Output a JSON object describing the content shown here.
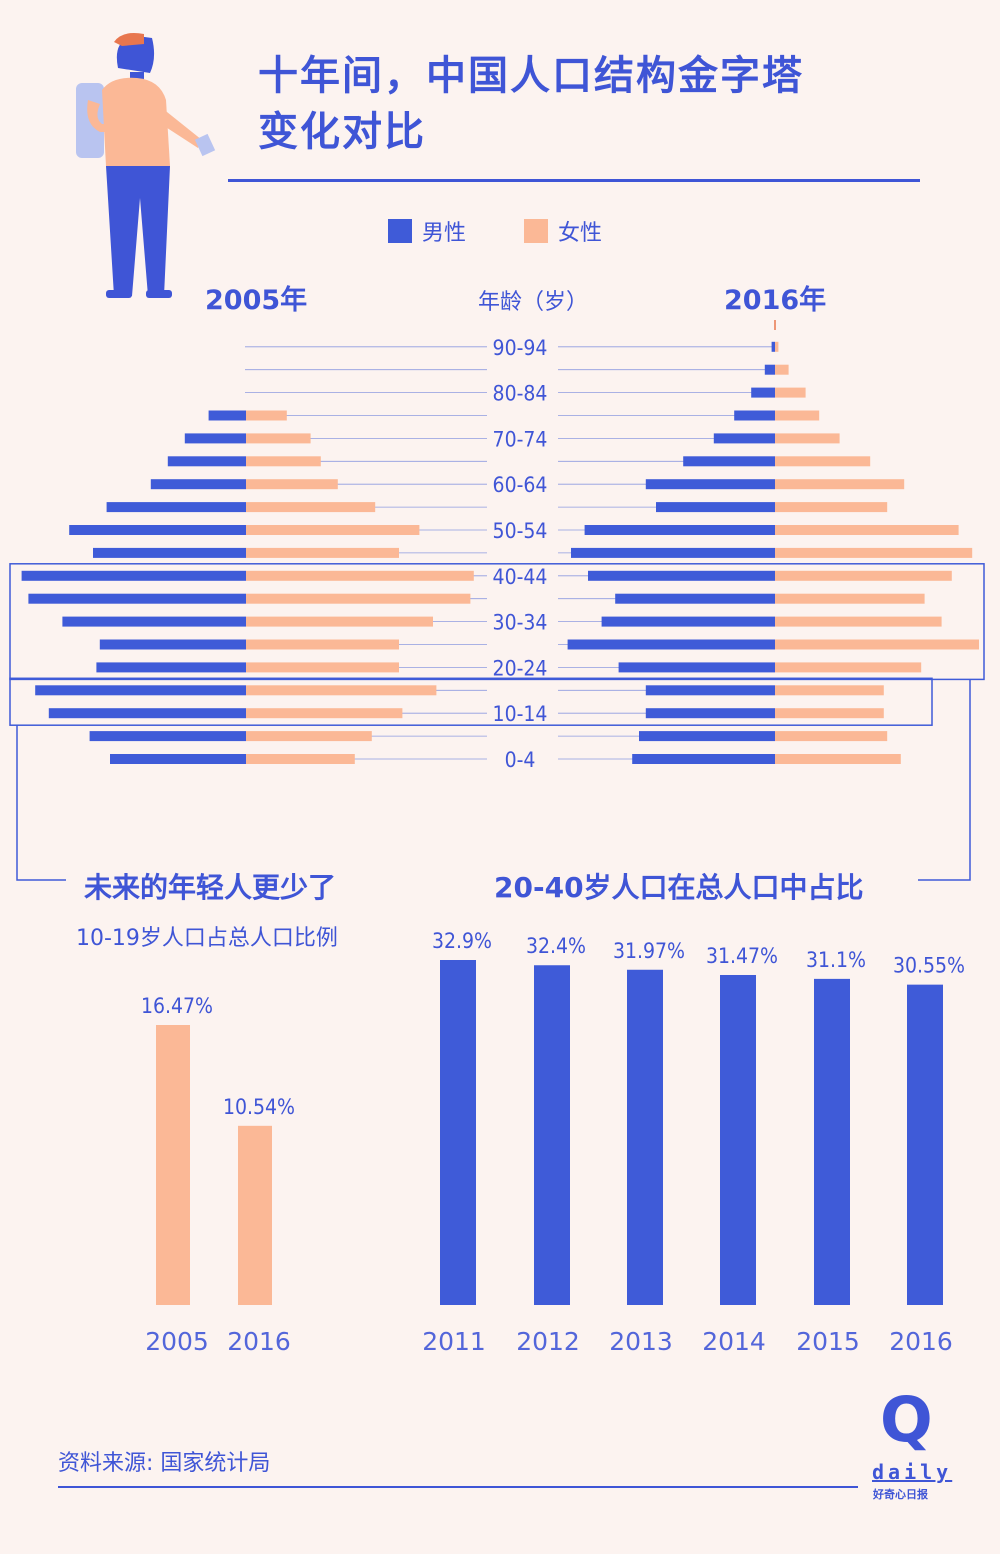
{
  "title": "十年间，中国人口结构金字塔变化对比",
  "title_lines": [
    "十年间，中国人口结构金字塔",
    "变化对比"
  ],
  "legend": {
    "male": "男性",
    "female": "女性"
  },
  "colors": {
    "male": "#3F5BD8",
    "female": "#FBB896",
    "text": "#3F55D6",
    "background": "#FCF3F0"
  },
  "pyramid": {
    "year_left": "2005年",
    "year_right": "2016年",
    "age_title": "年龄（岁）"
  },
  "section_left": {
    "title": "未来的年轻人更少了",
    "subtitle": "10-19岁人口占总人口比例"
  },
  "section_right": {
    "title": "20-40岁人口在总人口中占比"
  },
  "source": "资料来源: 国家统计局",
  "logo": {
    "mark": "Q",
    "name": "daily",
    "tagline": "好奇心日报"
  },
  "chart_data": [
    {
      "type": "bar",
      "subtype": "population-pyramid",
      "title": "2005年",
      "categories": [
        "0-4",
        "5-9",
        "10-14",
        "15-19",
        "20-24",
        "25-29",
        "30-34",
        "35-39",
        "40-44",
        "45-49",
        "50-54",
        "55-59",
        "60-64",
        "65-69",
        "70-74",
        "75-79"
      ],
      "tick_labels_shown": [
        "0-4",
        "10-14",
        "20-24",
        "30-34",
        "40-44",
        "50-54",
        "60-64",
        "70-74",
        "80-84",
        "90-94"
      ],
      "series": [
        {
          "name": "男性",
          "values": [
            4.0,
            4.6,
            5.8,
            6.2,
            4.4,
            4.3,
            5.4,
            6.4,
            6.6,
            4.5,
            5.2,
            4.1,
            2.8,
            2.3,
            1.8,
            1.1
          ]
        },
        {
          "name": "女性",
          "values": [
            3.2,
            3.7,
            4.6,
            5.6,
            4.5,
            4.5,
            5.5,
            6.6,
            6.7,
            4.5,
            5.1,
            3.8,
            2.7,
            2.2,
            1.9,
            1.2
          ]
        }
      ],
      "unit": "% of total population (estimated from bar lengths)"
    },
    {
      "type": "bar",
      "subtype": "population-pyramid",
      "title": "2016年",
      "categories": [
        "0-4",
        "5-9",
        "10-14",
        "15-19",
        "20-24",
        "25-29",
        "30-34",
        "35-39",
        "40-44",
        "45-49",
        "50-54",
        "55-59",
        "60-64",
        "65-69",
        "70-74",
        "75-79",
        "80-84",
        "85-89",
        "90-94"
      ],
      "tick_labels_shown": [
        "0-4",
        "10-14",
        "20-24",
        "30-34",
        "40-44",
        "50-54",
        "60-64",
        "70-74",
        "80-84",
        "90-94"
      ],
      "series": [
        {
          "name": "男性",
          "values": [
            4.2,
            4.0,
            3.8,
            3.8,
            4.6,
            6.1,
            5.1,
            4.7,
            5.5,
            6.0,
            5.6,
            3.5,
            3.8,
            2.7,
            1.8,
            1.2,
            0.7,
            0.3,
            0.1
          ]
        },
        {
          "name": "女性",
          "values": [
            3.7,
            3.3,
            3.2,
            3.2,
            4.3,
            6.0,
            4.9,
            4.4,
            5.2,
            5.8,
            5.4,
            3.3,
            3.8,
            2.8,
            1.9,
            1.3,
            0.9,
            0.4,
            0.1
          ]
        }
      ],
      "unit": "% of total population (estimated from bar lengths)"
    },
    {
      "type": "bar",
      "title": "10-19岁人口占总人口比例",
      "categories": [
        "2005",
        "2016"
      ],
      "values": [
        16.47,
        10.54
      ],
      "data_labels": [
        "16.47%",
        "10.54%"
      ],
      "color": "#FBB896"
    },
    {
      "type": "bar",
      "title": "20-40岁人口在总人口中占比",
      "categories": [
        "2011",
        "2012",
        "2013",
        "2014",
        "2015",
        "2016"
      ],
      "values": [
        32.9,
        32.4,
        31.97,
        31.47,
        31.1,
        30.55
      ],
      "data_labels": [
        "32.9%",
        "32.4%",
        "31.97%",
        "31.47%",
        "31.1%",
        "30.55%"
      ],
      "color": "#3F5BD8"
    }
  ]
}
